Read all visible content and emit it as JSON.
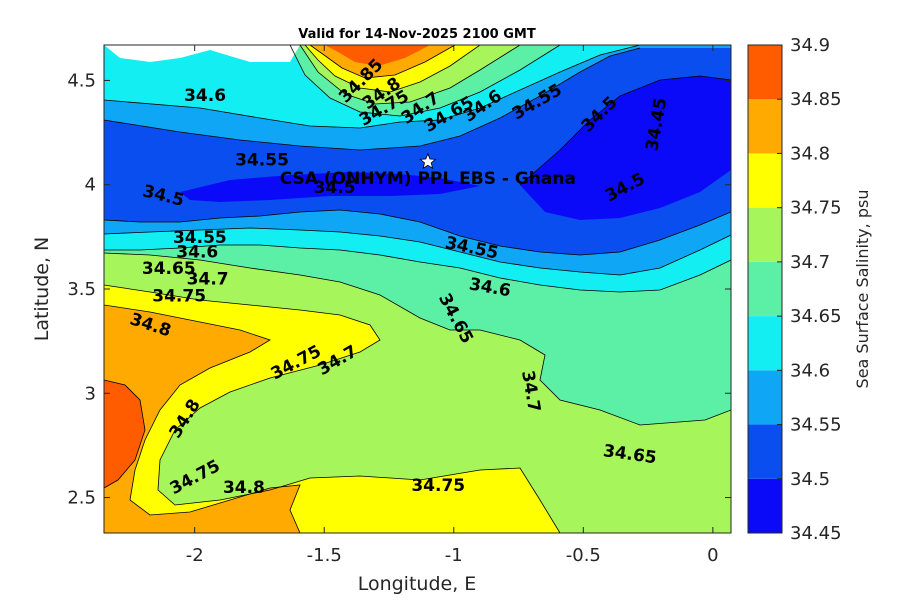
{
  "chart_data": {
    "type": "contour",
    "title": "Valid for 14-Nov-2025 2100 GMT",
    "xlabel": "Longitude, E",
    "ylabel": "Latitude, N",
    "xlim": [
      -2.35,
      0.07
    ],
    "ylim": [
      2.33,
      4.67
    ],
    "x_ticks": [
      -2,
      -1.5,
      -1,
      -0.5,
      0
    ],
    "x_tick_labels": [
      "-2",
      "-1.5",
      "-1",
      "-0.5",
      "0"
    ],
    "y_ticks": [
      2.5,
      3,
      3.5,
      4,
      4.5
    ],
    "y_tick_labels": [
      "2.5",
      "3",
      "3.5",
      "4",
      "4.5"
    ],
    "colorbar": {
      "title": "Sea Surface Salinity, psu",
      "levels": [
        34.45,
        34.5,
        34.55,
        34.6,
        34.65,
        34.7,
        34.75,
        34.8,
        34.85,
        34.9
      ],
      "level_labels": [
        "34.45",
        "34.5",
        "34.55",
        "34.6",
        "34.65",
        "34.7",
        "34.75",
        "34.8",
        "34.85",
        "34.9"
      ],
      "colors": [
        "#0a0af8",
        "#0a4ef0",
        "#0fa6f5",
        "#12eef2",
        "#5cf0a6",
        "#a6f55a",
        "#ffff00",
        "#ffaa00",
        "#ff5c00"
      ]
    },
    "contour_labels": [
      {
        "text": "34.85",
        "lon": -1.36,
        "lat": 4.5,
        "angle": -45
      },
      {
        "text": "34.8",
        "lon": -1.28,
        "lat": 4.44,
        "angle": -35
      },
      {
        "text": "34.75",
        "lon": -1.27,
        "lat": 4.37,
        "angle": -30
      },
      {
        "text": "34.7",
        "lon": -1.13,
        "lat": 4.37,
        "angle": -35
      },
      {
        "text": "34.65",
        "lon": -1.02,
        "lat": 4.34,
        "angle": -30
      },
      {
        "text": "34.6",
        "lon": -0.89,
        "lat": 4.38,
        "angle": -35
      },
      {
        "text": "34.55",
        "lon": -0.68,
        "lat": 4.4,
        "angle": -30
      },
      {
        "text": "34.5",
        "lon": -0.44,
        "lat": 4.34,
        "angle": -45
      },
      {
        "text": "34.45",
        "lon": -0.22,
        "lat": 4.29,
        "angle": -80
      },
      {
        "text": "34.6",
        "lon": -1.96,
        "lat": 4.43,
        "angle": 0
      },
      {
        "text": "34.55",
        "lon": -1.74,
        "lat": 4.12,
        "angle": 0
      },
      {
        "text": "34.5",
        "lon": -1.46,
        "lat": 3.99,
        "angle": 0
      },
      {
        "text": "34.5",
        "lon": -2.12,
        "lat": 3.95,
        "angle": 14
      },
      {
        "text": "34.5",
        "lon": -0.34,
        "lat": 3.99,
        "angle": -28
      },
      {
        "text": "34.55",
        "lon": -0.93,
        "lat": 3.7,
        "angle": 12
      },
      {
        "text": "34.6",
        "lon": -0.86,
        "lat": 3.51,
        "angle": 10
      },
      {
        "text": "34.65",
        "lon": -0.99,
        "lat": 3.36,
        "angle": 62
      },
      {
        "text": "34.7",
        "lon": -0.7,
        "lat": 3.01,
        "angle": 80
      },
      {
        "text": "34.65",
        "lon": -0.32,
        "lat": 2.71,
        "angle": 8
      },
      {
        "text": "34.55",
        "lon": -1.98,
        "lat": 3.75,
        "angle": 0
      },
      {
        "text": "34.6",
        "lon": -1.99,
        "lat": 3.68,
        "angle": 0
      },
      {
        "text": "34.65",
        "lon": -2.1,
        "lat": 3.6,
        "angle": 0
      },
      {
        "text": "34.7",
        "lon": -1.95,
        "lat": 3.55,
        "angle": 0
      },
      {
        "text": "34.75",
        "lon": -2.06,
        "lat": 3.47,
        "angle": 0
      },
      {
        "text": "34.8",
        "lon": -2.17,
        "lat": 3.33,
        "angle": 18
      },
      {
        "text": "34.75",
        "lon": -1.61,
        "lat": 3.15,
        "angle": -28
      },
      {
        "text": "34.7",
        "lon": -1.45,
        "lat": 3.16,
        "angle": -30
      },
      {
        "text": "34.8",
        "lon": -2.04,
        "lat": 2.88,
        "angle": -58
      },
      {
        "text": "34.75",
        "lon": -2.0,
        "lat": 2.6,
        "angle": -28
      },
      {
        "text": "34.8",
        "lon": -1.81,
        "lat": 2.55,
        "angle": 0
      },
      {
        "text": "34.75",
        "lon": -1.06,
        "lat": 2.56,
        "angle": 0
      }
    ],
    "site": {
      "label": "CSA (ONHYM) PPL EBS  - Ghana",
      "lon": -1.1,
      "lat": 4.11,
      "marker": "white-star"
    }
  }
}
